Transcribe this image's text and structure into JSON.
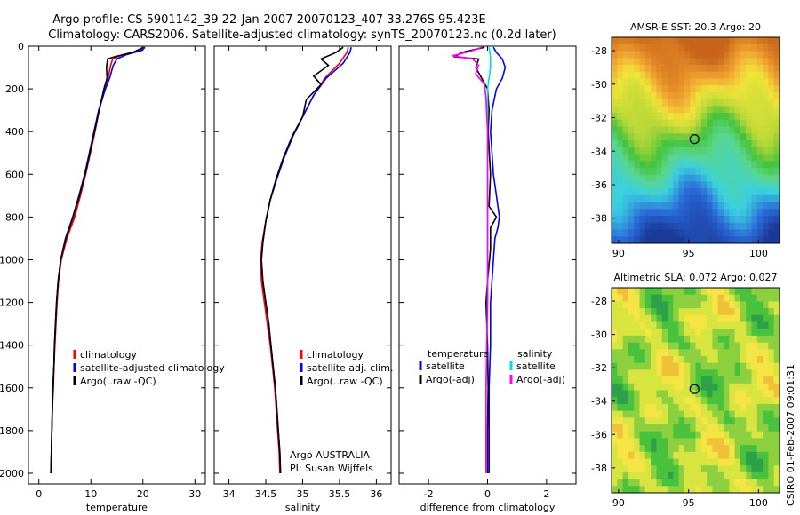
{
  "title_line1": "Argo profile: CS 5901142_39 22-Jan-2007 20070123_407 33.276S 95.423E",
  "title_line2": "Climatology: CARS2006. Satellite-adjusted climatology: synTS_20070123.nc (0.2d later)",
  "side_text": "CSIRO 01-Feb-2007 09:01:31",
  "colors": {
    "clim": "#ff0000",
    "sat": "#0000ff",
    "argo": "#000000",
    "sal_sat": "#00e0e0",
    "sal_argo": "#ff00ff"
  },
  "chart_data": [
    {
      "type": "line",
      "xlabel": "temperature",
      "ylabel": "",
      "xlim": [
        -2,
        32
      ],
      "ylim": [
        2050,
        0
      ],
      "y_reversed": true,
      "xticks": [
        0,
        10,
        20,
        30
      ],
      "yticks": [
        0,
        200,
        400,
        600,
        800,
        1000,
        1200,
        1400,
        1600,
        1800,
        2000
      ],
      "legend": [
        "climatology",
        "satellite-adjusted climatology",
        "Argo(..raw -QC)"
      ],
      "series": [
        {
          "name": "climatology",
          "color": "#ff0000",
          "points": [
            [
              20.2,
              5
            ],
            [
              19.5,
              20
            ],
            [
              16,
              40
            ],
            [
              14.2,
              60
            ],
            [
              13.8,
              90
            ],
            [
              13.3,
              150
            ],
            [
              12.7,
              200
            ],
            [
              11.6,
              300
            ],
            [
              10.8,
              400
            ],
            [
              9.9,
              500
            ],
            [
              9,
              600
            ],
            [
              8,
              700
            ],
            [
              6.9,
              800
            ],
            [
              5.4,
              900
            ],
            [
              4.3,
              1000
            ],
            [
              3.8,
              1100
            ],
            [
              3.5,
              1200
            ],
            [
              3.3,
              1300
            ],
            [
              3.1,
              1400
            ],
            [
              2.9,
              1500
            ],
            [
              2.8,
              1600
            ],
            [
              2.6,
              1700
            ],
            [
              2.5,
              1800
            ],
            [
              2.4,
              1900
            ],
            [
              2.3,
              2000
            ]
          ]
        },
        {
          "name": "satellite-adjusted climatology",
          "color": "#0000ff",
          "points": [
            [
              20.4,
              5
            ],
            [
              19.8,
              20
            ],
            [
              16.8,
              40
            ],
            [
              15,
              60
            ],
            [
              14.3,
              90
            ],
            [
              13.6,
              150
            ],
            [
              12.8,
              200
            ],
            [
              11.5,
              300
            ],
            [
              10.6,
              400
            ],
            [
              9.7,
              500
            ],
            [
              8.8,
              600
            ],
            [
              7.7,
              700
            ],
            [
              6.5,
              800
            ],
            [
              5.1,
              900
            ],
            [
              4.2,
              1000
            ],
            [
              3.7,
              1100
            ],
            [
              3.4,
              1200
            ],
            [
              3.2,
              1300
            ],
            [
              3,
              1400
            ],
            [
              2.9,
              1500
            ],
            [
              2.7,
              1600
            ],
            [
              2.6,
              1700
            ],
            [
              2.5,
              1800
            ],
            [
              2.4,
              1900
            ],
            [
              2.3,
              2000
            ]
          ]
        },
        {
          "name": "Argo(..raw -QC)",
          "color": "#000000",
          "points": [
            [
              20.1,
              5
            ],
            [
              18,
              30
            ],
            [
              14.5,
              50
            ],
            [
              13.2,
              60
            ],
            [
              13,
              100
            ],
            [
              13.1,
              150
            ],
            [
              12.5,
              200
            ],
            [
              11.6,
              300
            ],
            [
              10.7,
              400
            ],
            [
              9.8,
              500
            ],
            [
              8.9,
              600
            ],
            [
              7.8,
              700
            ],
            [
              6.6,
              800
            ],
            [
              5.2,
              900
            ],
            [
              4.2,
              1000
            ],
            [
              3.7,
              1100
            ],
            [
              3.4,
              1200
            ],
            [
              3.2,
              1300
            ],
            [
              3,
              1400
            ],
            [
              2.9,
              1500
            ],
            [
              2.7,
              1600
            ],
            [
              2.6,
              1700
            ],
            [
              2.5,
              1800
            ],
            [
              2.4,
              1900
            ],
            [
              2.3,
              2000
            ]
          ]
        }
      ]
    },
    {
      "type": "line",
      "xlabel": "salinity",
      "ylabel": "",
      "xlim": [
        33.8,
        36.2
      ],
      "ylim": [
        2050,
        0
      ],
      "y_reversed": true,
      "xticks": [
        34,
        34.5,
        35,
        35.5,
        36
      ],
      "legend": [
        "climatology",
        "satellite adj. clim.",
        "Argo(..raw -QC)"
      ],
      "annotation": [
        "Argo AUSTRALIA",
        "PI: Susan Wijffels"
      ],
      "series": [
        {
          "name": "climatology",
          "color": "#ff0000",
          "points": [
            [
              35.62,
              5
            ],
            [
              35.6,
              30
            ],
            [
              35.5,
              80
            ],
            [
              35.3,
              150
            ],
            [
              35.15,
              230
            ],
            [
              35,
              330
            ],
            [
              34.87,
              420
            ],
            [
              34.75,
              520
            ],
            [
              34.65,
              620
            ],
            [
              34.56,
              720
            ],
            [
              34.5,
              820
            ],
            [
              34.45,
              920
            ],
            [
              34.43,
              1000
            ],
            [
              34.44,
              1100
            ],
            [
              34.48,
              1200
            ],
            [
              34.52,
              1300
            ],
            [
              34.56,
              1400
            ],
            [
              34.59,
              1500
            ],
            [
              34.62,
              1600
            ],
            [
              34.64,
              1700
            ],
            [
              34.66,
              1800
            ],
            [
              34.68,
              1900
            ],
            [
              34.69,
              2000
            ]
          ]
        },
        {
          "name": "satellite adj. clim.",
          "color": "#0000ff",
          "points": [
            [
              35.66,
              5
            ],
            [
              35.64,
              30
            ],
            [
              35.55,
              80
            ],
            [
              35.32,
              150
            ],
            [
              35.15,
              230
            ],
            [
              35,
              330
            ],
            [
              34.87,
              420
            ],
            [
              34.75,
              520
            ],
            [
              34.65,
              620
            ],
            [
              34.56,
              720
            ],
            [
              34.5,
              820
            ],
            [
              34.46,
              920
            ],
            [
              34.44,
              1000
            ],
            [
              34.46,
              1100
            ],
            [
              34.5,
              1200
            ],
            [
              34.54,
              1300
            ],
            [
              34.57,
              1400
            ],
            [
              34.6,
              1500
            ],
            [
              34.63,
              1600
            ],
            [
              34.65,
              1700
            ],
            [
              34.67,
              1800
            ],
            [
              34.69,
              1900
            ],
            [
              34.7,
              2000
            ]
          ]
        },
        {
          "name": "Argo(..raw -QC)",
          "color": "#000000",
          "points": [
            [
              35.55,
              5
            ],
            [
              35.45,
              30
            ],
            [
              35.25,
              60
            ],
            [
              35.35,
              90
            ],
            [
              35.15,
              140
            ],
            [
              35.25,
              180
            ],
            [
              35.05,
              250
            ],
            [
              35,
              330
            ],
            [
              34.86,
              420
            ],
            [
              34.74,
              520
            ],
            [
              34.64,
              620
            ],
            [
              34.56,
              720
            ],
            [
              34.5,
              820
            ],
            [
              34.46,
              920
            ],
            [
              34.44,
              1000
            ],
            [
              34.46,
              1100
            ],
            [
              34.5,
              1200
            ],
            [
              34.54,
              1300
            ],
            [
              34.57,
              1400
            ],
            [
              34.6,
              1500
            ],
            [
              34.63,
              1600
            ],
            [
              34.65,
              1700
            ],
            [
              34.67,
              1800
            ],
            [
              34.69,
              1900
            ],
            [
              34.7,
              2000
            ]
          ]
        }
      ]
    },
    {
      "type": "line",
      "xlabel": "difference from climatology",
      "ylabel": "",
      "xlim": [
        -3,
        3
      ],
      "ylim": [
        2050,
        0
      ],
      "y_reversed": true,
      "xticks": [
        -2,
        0,
        2
      ],
      "legend": [
        "temperature",
        "satellite",
        "Argo(-adj)",
        "salinity",
        "satellite",
        "Argo(-adj)"
      ],
      "series": [
        {
          "name": "temperature satellite",
          "color": "#0000ff",
          "points": [
            [
              0.2,
              5
            ],
            [
              0.3,
              30
            ],
            [
              0.5,
              60
            ],
            [
              0.6,
              100
            ],
            [
              0.5,
              150
            ],
            [
              0.3,
              200
            ],
            [
              0.15,
              300
            ],
            [
              0.1,
              400
            ],
            [
              0.15,
              500
            ],
            [
              0.2,
              600
            ],
            [
              0.3,
              700
            ],
            [
              0.4,
              800
            ],
            [
              0.35,
              850
            ],
            [
              0.25,
              900
            ],
            [
              0.2,
              1000
            ],
            [
              0.15,
              1100
            ],
            [
              0.1,
              1200
            ],
            [
              0.1,
              1400
            ],
            [
              0.05,
              1600
            ],
            [
              0.05,
              1800
            ],
            [
              0.05,
              2000
            ]
          ]
        },
        {
          "name": "temperature Argo(-adj)",
          "color": "#000000",
          "points": [
            [
              -0.1,
              5
            ],
            [
              -0.9,
              30
            ],
            [
              -1.1,
              50
            ],
            [
              -0.3,
              60
            ],
            [
              -0.4,
              100
            ],
            [
              -0.2,
              150
            ],
            [
              0,
              200
            ],
            [
              0.05,
              300
            ],
            [
              0.02,
              400
            ],
            [
              0.1,
              600
            ],
            [
              0.05,
              750
            ],
            [
              0.3,
              800
            ],
            [
              0.1,
              850
            ],
            [
              0.1,
              950
            ],
            [
              0,
              1100
            ],
            [
              -0.05,
              1200
            ],
            [
              0,
              1400
            ],
            [
              0.02,
              1600
            ],
            [
              0,
              1800
            ],
            [
              0,
              2000
            ]
          ]
        },
        {
          "name": "salinity satellite",
          "color": "#00e0e0",
          "points": [
            [
              0.05,
              5
            ],
            [
              0.1,
              50
            ],
            [
              0.1,
              100
            ],
            [
              0,
              200
            ],
            [
              0,
              400
            ],
            [
              0,
              800
            ],
            [
              0,
              1200
            ],
            [
              -0.05,
              1600
            ],
            [
              -0.05,
              2000
            ]
          ]
        },
        {
          "name": "salinity Argo(-adj)",
          "color": "#ff00ff",
          "points": [
            [
              -0.2,
              5
            ],
            [
              -0.6,
              25
            ],
            [
              -1.2,
              45
            ],
            [
              -0.5,
              60
            ],
            [
              -0.3,
              90
            ],
            [
              -0.4,
              130
            ],
            [
              -0.1,
              180
            ],
            [
              -0.05,
              250
            ],
            [
              0,
              400
            ],
            [
              0,
              600
            ],
            [
              0,
              800
            ],
            [
              0,
              1200
            ],
            [
              -0.05,
              1600
            ],
            [
              -0.05,
              2000
            ]
          ]
        }
      ]
    },
    {
      "type": "heatmap",
      "title": "AMSR-E SST: 20.3 Argo: 20",
      "xlim": [
        89.5,
        101.5
      ],
      "ylim": [
        -39.5,
        -27.2
      ],
      "xticks": [
        90,
        95,
        100
      ],
      "yticks": [
        -28,
        -30,
        -32,
        -34,
        -36,
        -38
      ],
      "marker": [
        95.423,
        -33.276
      ]
    },
    {
      "type": "heatmap",
      "title": "Altimetric SLA: 0.072 Argo: 0.027",
      "xlim": [
        89.5,
        101.5
      ],
      "ylim": [
        -39.5,
        -27.2
      ],
      "xticks": [
        90,
        95,
        100
      ],
      "yticks": [
        -28,
        -30,
        -32,
        -34,
        -36,
        -38
      ],
      "marker": [
        95.423,
        -33.276
      ]
    }
  ]
}
